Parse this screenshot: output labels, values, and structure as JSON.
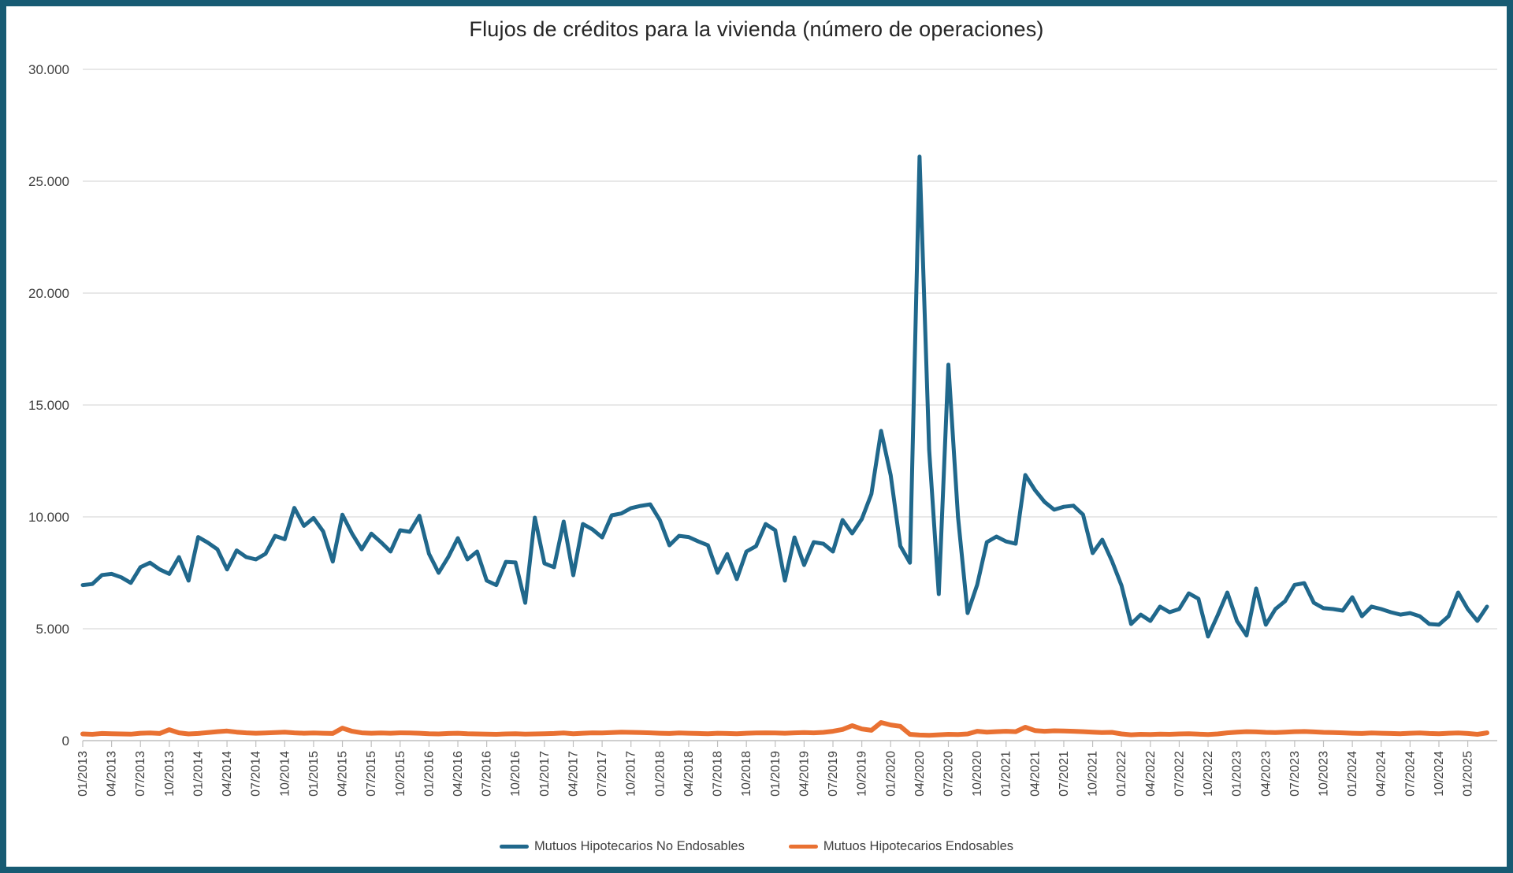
{
  "chart": {
    "title": "Flujos de créditos para la vivienda (número de operaciones)"
  },
  "colors": {
    "frame_border": "#175B73",
    "gridline": "#D9D9D9",
    "axis_line": "#BFBFBF",
    "tick_text": "#404040",
    "title_text": "#262626",
    "series_blue": "#20688C",
    "series_orange": "#E97132"
  },
  "chart_data": {
    "type": "line",
    "title": "Flujos de créditos para la vivienda (número de operaciones)",
    "x_frequency": "monthly",
    "x_start": "01/2013",
    "x_end": "03/2025",
    "tick_labels": [
      "01/2013",
      "04/2013",
      "07/2013",
      "10/2013",
      "01/2014",
      "04/2014",
      "07/2014",
      "10/2014",
      "01/2015",
      "04/2015",
      "07/2015",
      "10/2015",
      "01/2016",
      "04/2016",
      "07/2016",
      "10/2016",
      "01/2017",
      "04/2017",
      "07/2017",
      "10/2017",
      "01/2018",
      "04/2018",
      "07/2018",
      "10/2018",
      "01/2019",
      "04/2019",
      "07/2019",
      "10/2019",
      "01/2020",
      "04/2020",
      "07/2020",
      "10/2020",
      "01/2021",
      "04/2021",
      "07/2021",
      "10/2021",
      "01/2022",
      "04/2022",
      "07/2022",
      "10/2022",
      "01/2023",
      "04/2023",
      "07/2023",
      "10/2023",
      "01/2024",
      "04/2024",
      "07/2024",
      "10/2024",
      "01/2025"
    ],
    "y_ticks": [
      {
        "label": "0",
        "value": 0
      },
      {
        "label": "5.000",
        "value": 5000
      },
      {
        "label": "10.000",
        "value": 10000
      },
      {
        "label": "15.000",
        "value": 15000
      },
      {
        "label": "20.000",
        "value": 20000
      },
      {
        "label": "25.000",
        "value": 25000
      },
      {
        "label": "30.000",
        "value": 30000
      }
    ],
    "ylim": [
      0,
      30000
    ],
    "grid": "horizontal",
    "legend_position": "bottom",
    "series": [
      {
        "name": "Mutuos Hipotecarios No Endosables",
        "color": "#20688C",
        "values": [
          6950,
          7000,
          7400,
          7450,
          7300,
          7050,
          7750,
          7950,
          7650,
          7450,
          8200,
          7150,
          9100,
          8850,
          8550,
          7650,
          8500,
          8200,
          8100,
          8350,
          9150,
          9000,
          10400,
          9600,
          9950,
          9350,
          8000,
          10100,
          9250,
          8550,
          9250,
          8870,
          8450,
          9400,
          9330,
          10050,
          8350,
          7500,
          8200,
          9050,
          8100,
          8450,
          7150,
          6950,
          7990,
          7960,
          6160,
          9965,
          7920,
          7750,
          9790,
          7390,
          9680,
          9440,
          9080,
          10070,
          10150,
          10390,
          10490,
          10560,
          9860,
          8730,
          9150,
          9100,
          8900,
          8730,
          7500,
          8340,
          7220,
          8450,
          8690,
          9680,
          9400,
          7150,
          9080,
          7850,
          8870,
          8800,
          8450,
          9860,
          9260,
          9900,
          11020,
          13840,
          11860,
          8700,
          7950,
          26100,
          13000,
          6550,
          16800,
          10000,
          5700,
          6970,
          8870,
          9120,
          8900,
          8800,
          11870,
          11200,
          10670,
          10320,
          10450,
          10500,
          10100,
          8380,
          8980,
          8030,
          6930,
          5210,
          5630,
          5350,
          5990,
          5740,
          5880,
          6580,
          6340,
          4650,
          5600,
          6620,
          5350,
          4700,
          6800,
          5180,
          5880,
          6230,
          6960,
          7040,
          6160,
          5920,
          5880,
          5810,
          6410,
          5560,
          5990,
          5880,
          5740,
          5630,
          5700,
          5560,
          5210,
          5180,
          5560,
          6620,
          5880,
          5350,
          5990
        ]
      },
      {
        "name": "Mutuos Hipotecarios Endosables",
        "color": "#E97132",
        "values": [
          300,
          280,
          320,
          310,
          300,
          290,
          330,
          340,
          320,
          490,
          350,
          300,
          320,
          360,
          400,
          430,
          380,
          350,
          330,
          340,
          360,
          380,
          350,
          330,
          340,
          330,
          320,
          560,
          420,
          350,
          330,
          340,
          330,
          350,
          340,
          330,
          310,
          300,
          320,
          330,
          310,
          300,
          290,
          280,
          300,
          310,
          290,
          300,
          310,
          320,
          340,
          310,
          330,
          350,
          340,
          360,
          380,
          370,
          360,
          350,
          330,
          320,
          340,
          330,
          320,
          310,
          330,
          320,
          310,
          330,
          340,
          350,
          340,
          330,
          350,
          360,
          350,
          370,
          420,
          500,
          670,
          520,
          460,
          810,
          700,
          640,
          280,
          250,
          240,
          260,
          280,
          270,
          300,
          420,
          380,
          400,
          420,
          400,
          600,
          450,
          420,
          440,
          430,
          420,
          400,
          380,
          360,
          370,
          300,
          260,
          280,
          270,
          290,
          280,
          300,
          310,
          290,
          270,
          300,
          350,
          380,
          400,
          390,
          370,
          360,
          380,
          400,
          410,
          390,
          370,
          360,
          350,
          330,
          320,
          340,
          330,
          320,
          310,
          330,
          340,
          320,
          310,
          330,
          340,
          320,
          280,
          350
        ]
      }
    ]
  }
}
